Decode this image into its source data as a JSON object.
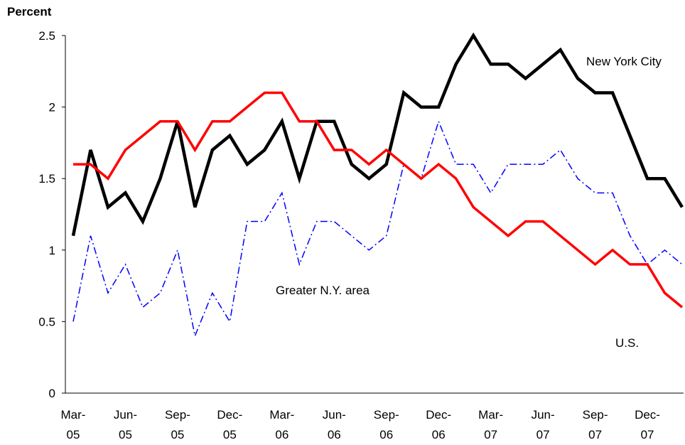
{
  "chart_data": {
    "type": "line",
    "y_label": "Percent",
    "categories": [
      "Mar-05",
      null,
      null,
      "Jun-05",
      null,
      null,
      "Sep-05",
      null,
      null,
      "Dec-05",
      null,
      null,
      "Mar-06",
      null,
      null,
      "Jun-06",
      null,
      null,
      "Sep-06",
      null,
      null,
      "Dec-06",
      null,
      null,
      "Mar-07",
      null,
      null,
      "Jun-07",
      null,
      null,
      "Sep-07",
      null,
      null,
      "Dec-07",
      null,
      null
    ],
    "series": [
      {
        "name": "New York City",
        "color": "#000000",
        "style": "solid",
        "values": [
          1.1,
          1.7,
          1.3,
          1.4,
          1.2,
          1.5,
          1.9,
          1.3,
          1.7,
          1.8,
          1.6,
          1.7,
          1.9,
          1.5,
          1.9,
          1.9,
          1.6,
          1.5,
          1.6,
          2.1,
          2.0,
          2.0,
          2.3,
          2.5,
          2.3,
          2.3,
          2.2,
          2.3,
          2.4,
          2.2,
          2.1,
          2.1,
          1.8,
          1.5,
          1.5,
          1.3
        ]
      },
      {
        "name": "Greater N.Y. area",
        "color": "#0000ff",
        "style": "dashdot",
        "values": [
          0.5,
          1.1,
          0.7,
          0.9,
          0.6,
          0.7,
          1.0,
          0.4,
          0.7,
          0.5,
          1.2,
          1.2,
          1.4,
          0.9,
          1.2,
          1.2,
          1.1,
          1.0,
          1.1,
          1.6,
          1.5,
          1.9,
          1.6,
          1.6,
          1.4,
          1.6,
          1.6,
          1.6,
          1.7,
          1.5,
          1.4,
          1.4,
          1.1,
          0.9,
          1.0,
          0.9
        ]
      },
      {
        "name": "U.S.",
        "color": "#ff0000",
        "style": "solid",
        "values": [
          1.6,
          1.6,
          1.5,
          1.7,
          1.8,
          1.9,
          1.9,
          1.7,
          1.9,
          1.9,
          2.0,
          2.1,
          2.1,
          1.9,
          1.9,
          1.7,
          1.7,
          1.6,
          1.7,
          1.6,
          1.5,
          1.6,
          1.5,
          1.3,
          1.2,
          1.1,
          1.2,
          1.2,
          1.1,
          1.0,
          0.9,
          1.0,
          0.9,
          0.9,
          0.7,
          0.6
        ]
      }
    ],
    "ylim": [
      0,
      2.5
    ],
    "yticks": [
      0,
      0.5,
      1,
      1.5,
      2,
      2.5
    ],
    "grid": false
  }
}
